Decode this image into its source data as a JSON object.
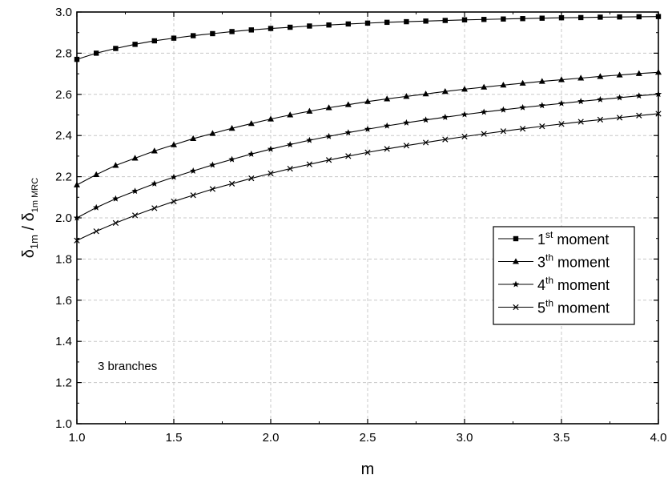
{
  "chart_data": {
    "type": "line",
    "xlabel": "m",
    "ylabel": {
      "base": "δ",
      "num_sub": "1m",
      "separator": " / ",
      "den_sub": "1m MRC"
    },
    "xlim": [
      1.0,
      4.0
    ],
    "ylim": [
      1.0,
      3.0
    ],
    "x_ticks": [
      "1.0",
      "1.5",
      "2.0",
      "2.5",
      "3.0",
      "3.5",
      "4.0"
    ],
    "y_ticks": [
      "1.0",
      "1.2",
      "1.4",
      "1.6",
      "1.8",
      "2.0",
      "2.2",
      "2.4",
      "2.6",
      "2.8",
      "3.0"
    ],
    "grid": true,
    "legend_position": "lower-right",
    "annotation": "3 branches",
    "x": [
      1.0,
      1.1,
      1.2,
      1.3,
      1.4,
      1.5,
      1.6,
      1.7,
      1.8,
      1.9,
      2.0,
      2.1,
      2.2,
      2.3,
      2.4,
      2.5,
      2.6,
      2.7,
      2.8,
      2.9,
      3.0,
      3.1,
      3.2,
      3.3,
      3.4,
      3.5,
      3.6,
      3.7,
      3.8,
      3.9,
      4.0
    ],
    "series": [
      {
        "label_ordinal": "1",
        "label_suffix": "st",
        "label_word": " moment",
        "marker": "square",
        "values": [
          2.77,
          2.8,
          2.823,
          2.843,
          2.86,
          2.873,
          2.885,
          2.895,
          2.905,
          2.913,
          2.92,
          2.926,
          2.932,
          2.937,
          2.942,
          2.946,
          2.95,
          2.953,
          2.956,
          2.959,
          2.962,
          2.964,
          2.966,
          2.968,
          2.97,
          2.972,
          2.973,
          2.975,
          2.976,
          2.977,
          2.978
        ]
      },
      {
        "label_ordinal": "3",
        "label_suffix": "th",
        "label_word": " moment",
        "marker": "triangle",
        "values": [
          2.16,
          2.21,
          2.255,
          2.29,
          2.325,
          2.355,
          2.385,
          2.41,
          2.435,
          2.458,
          2.48,
          2.5,
          2.518,
          2.535,
          2.55,
          2.565,
          2.578,
          2.59,
          2.602,
          2.614,
          2.625,
          2.635,
          2.645,
          2.654,
          2.663,
          2.671,
          2.679,
          2.687,
          2.694,
          2.701,
          2.707
        ]
      },
      {
        "label_ordinal": "4",
        "label_suffix": "th",
        "label_word": " moment",
        "marker": "star",
        "values": [
          2.0,
          2.05,
          2.093,
          2.13,
          2.166,
          2.198,
          2.228,
          2.257,
          2.284,
          2.31,
          2.334,
          2.356,
          2.377,
          2.396,
          2.414,
          2.431,
          2.447,
          2.462,
          2.476,
          2.489,
          2.502,
          2.514,
          2.525,
          2.536,
          2.546,
          2.556,
          2.566,
          2.575,
          2.584,
          2.593,
          2.601
        ]
      },
      {
        "label_ordinal": "5",
        "label_suffix": "th",
        "label_word": " moment",
        "marker": "x",
        "values": [
          1.89,
          1.935,
          1.975,
          2.012,
          2.047,
          2.08,
          2.11,
          2.14,
          2.166,
          2.192,
          2.216,
          2.239,
          2.26,
          2.281,
          2.3,
          2.318,
          2.335,
          2.351,
          2.366,
          2.381,
          2.395,
          2.408,
          2.421,
          2.433,
          2.445,
          2.456,
          2.467,
          2.477,
          2.487,
          2.497,
          2.506
        ]
      }
    ]
  }
}
